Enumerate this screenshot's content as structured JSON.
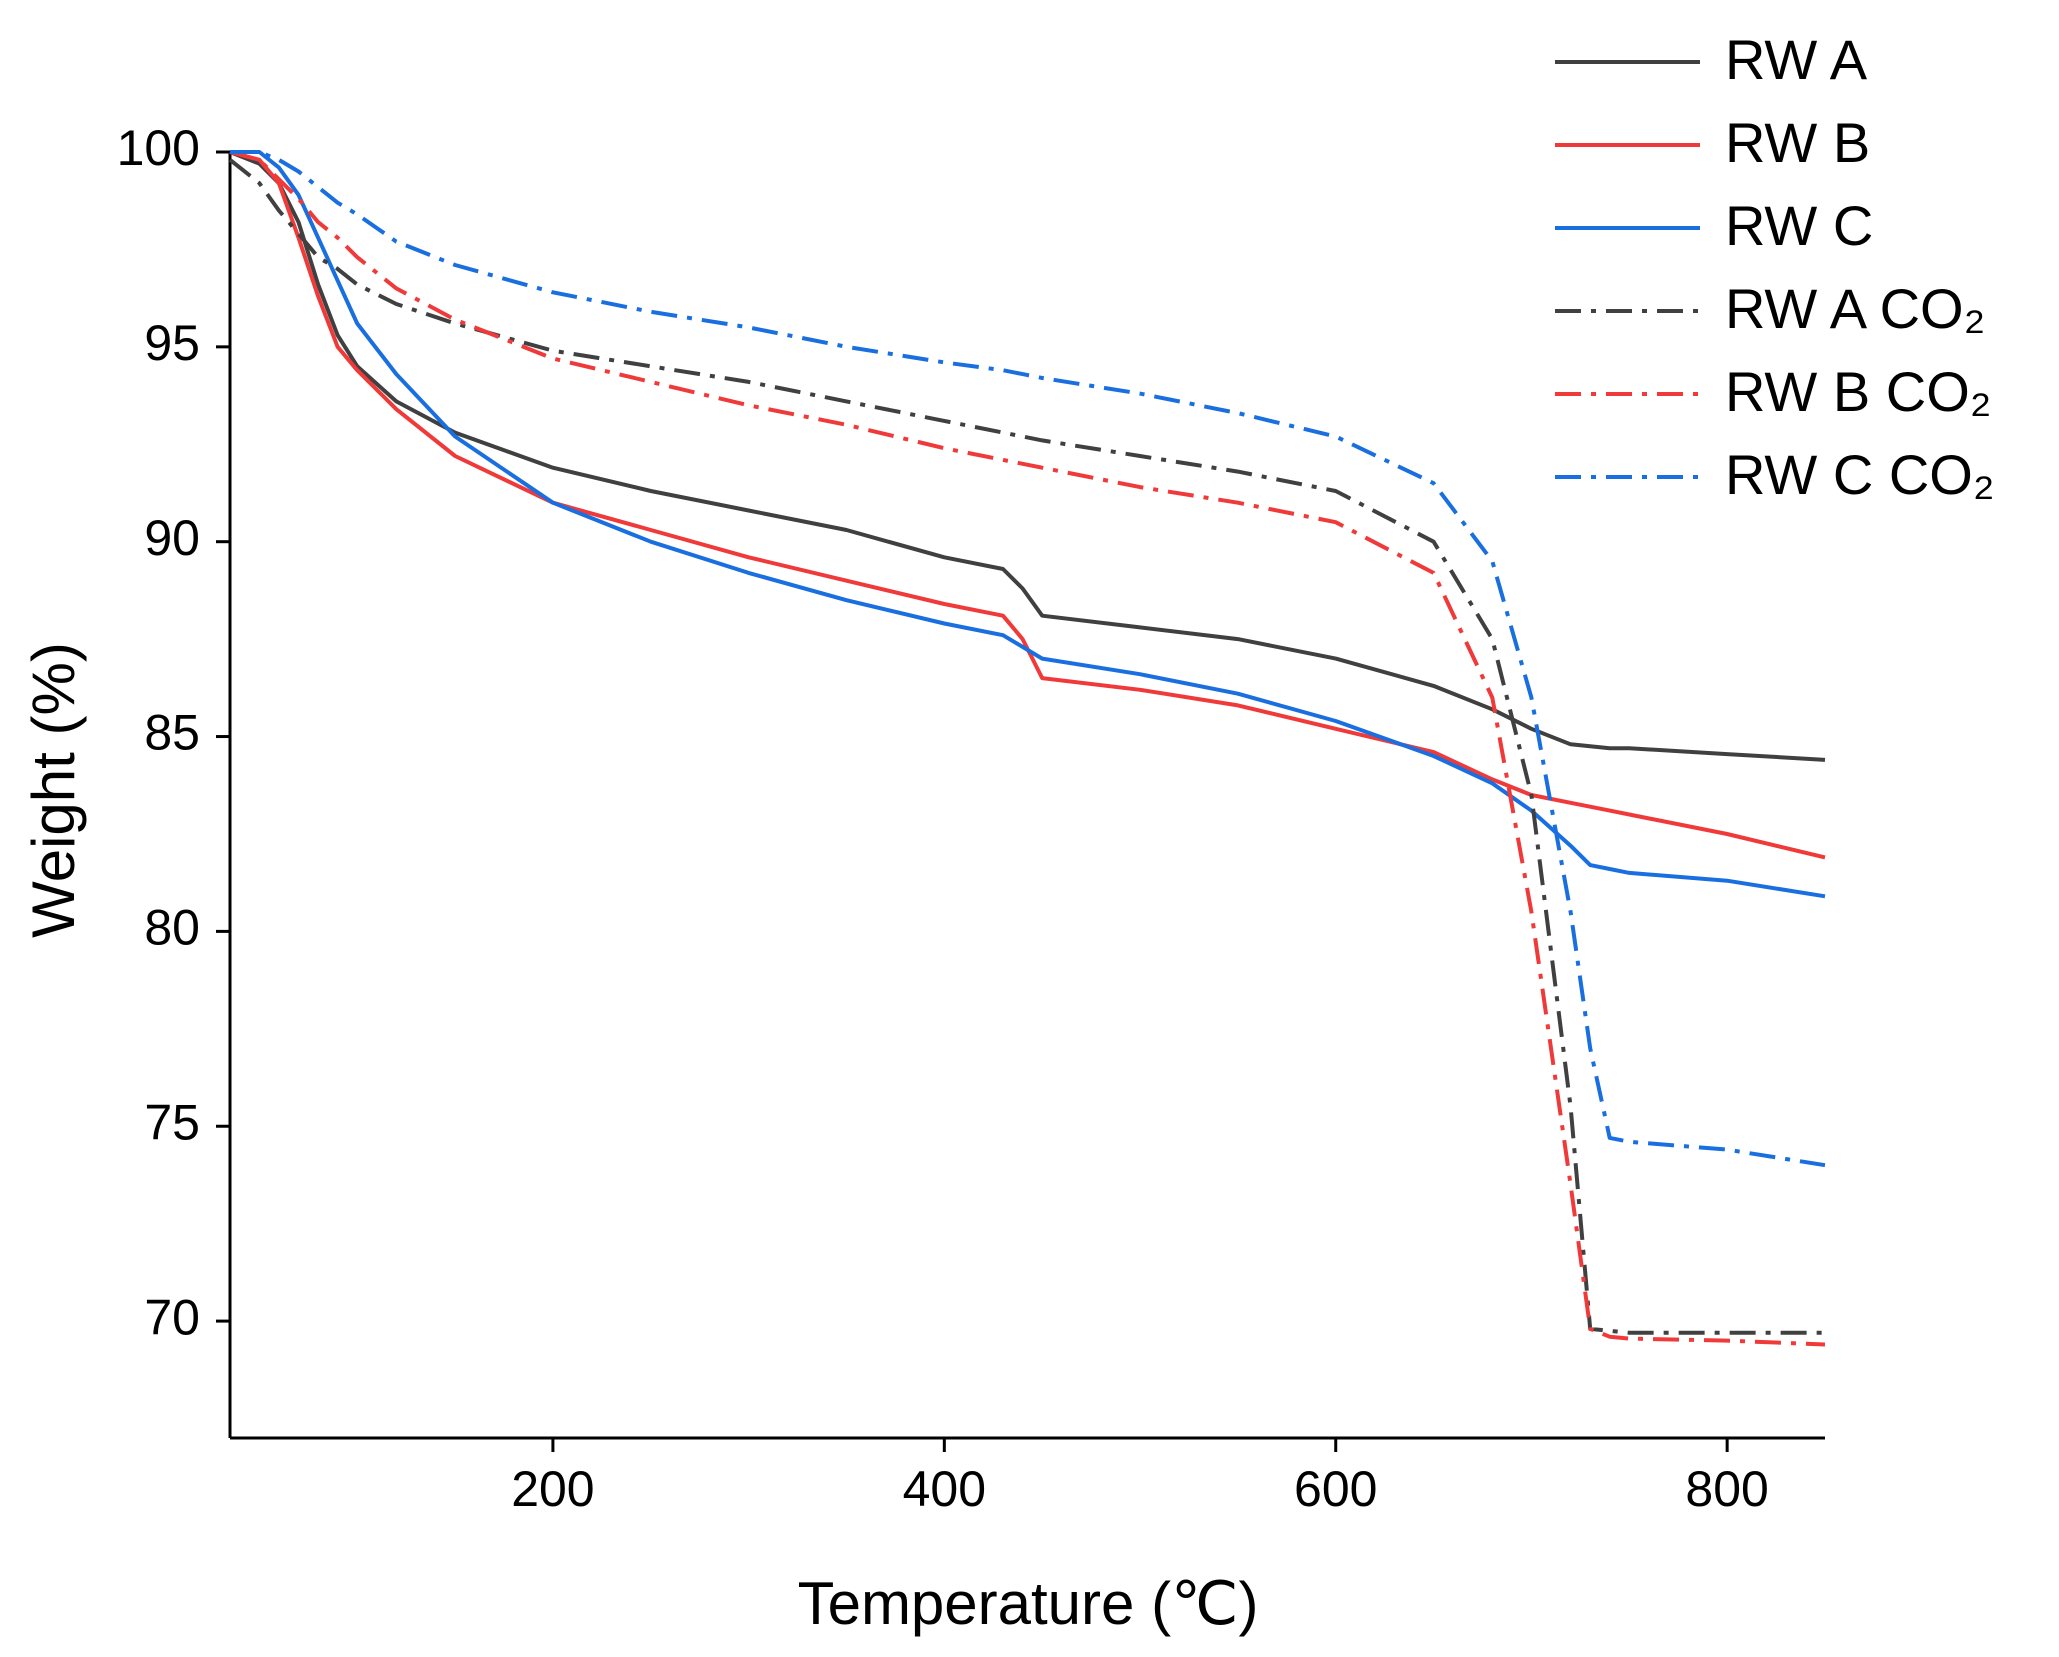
{
  "chart_data": {
    "type": "line",
    "xlabel": "Temperature (℃)",
    "ylabel": "Weight (%)",
    "xlim": [
      35,
      850
    ],
    "ylim": [
      67,
      100
    ],
    "xticks": [
      200,
      400,
      600,
      800
    ],
    "yticks": [
      70,
      75,
      80,
      85,
      90,
      95,
      100
    ],
    "legend": "upper right",
    "x": [
      35,
      50,
      60,
      70,
      80,
      90,
      100,
      120,
      150,
      200,
      250,
      300,
      350,
      400,
      430,
      440,
      450,
      500,
      550,
      600,
      650,
      680,
      700,
      720,
      730,
      740,
      750,
      800,
      850
    ],
    "series": [
      {
        "name": "RW A",
        "color": "#404040",
        "style": "solid",
        "values": [
          100,
          99.7,
          99.2,
          98.2,
          96.6,
          95.3,
          94.5,
          93.6,
          92.8,
          91.9,
          91.3,
          90.8,
          90.3,
          89.6,
          89.3,
          88.8,
          88.1,
          87.8,
          87.5,
          87.0,
          86.3,
          85.7,
          85.2,
          84.8,
          84.75,
          84.7,
          84.7,
          84.55,
          84.4
        ]
      },
      {
        "name": "RW B",
        "color": "#f03a3a",
        "style": "solid",
        "values": [
          100,
          99.8,
          99.2,
          97.8,
          96.3,
          95.0,
          94.4,
          93.4,
          92.2,
          91.0,
          90.3,
          89.6,
          89.0,
          88.4,
          88.1,
          87.5,
          86.5,
          86.2,
          85.8,
          85.2,
          84.6,
          83.9,
          83.5,
          83.3,
          83.2,
          83.1,
          83.0,
          82.5,
          81.9
        ]
      },
      {
        "name": "RW C",
        "color": "#1a6fe0",
        "style": "solid",
        "values": [
          100,
          100,
          99.6,
          98.9,
          97.8,
          96.7,
          95.6,
          94.3,
          92.7,
          91.0,
          90.0,
          89.2,
          88.5,
          87.9,
          87.6,
          87.3,
          87.0,
          86.6,
          86.1,
          85.4,
          84.5,
          83.8,
          83.1,
          82.2,
          81.7,
          81.6,
          81.5,
          81.3,
          80.9
        ]
      },
      {
        "name": "RW A CO₂",
        "color": "#404040",
        "style": "dashdot",
        "values": [
          99.8,
          99.2,
          98.5,
          97.9,
          97.3,
          97.0,
          96.6,
          96.1,
          95.6,
          94.9,
          94.5,
          94.1,
          93.6,
          93.1,
          92.8,
          92.7,
          92.6,
          92.2,
          91.8,
          91.3,
          90.0,
          87.5,
          83.5,
          75.5,
          69.8,
          69.75,
          69.7,
          69.7,
          69.7
        ]
      },
      {
        "name": "RW B CO₂",
        "color": "#f03a3a",
        "style": "dashdot",
        "values": [
          100,
          99.8,
          99.3,
          98.8,
          98.2,
          97.8,
          97.3,
          96.5,
          95.7,
          94.7,
          94.1,
          93.5,
          93.0,
          92.4,
          92.1,
          92.0,
          91.9,
          91.4,
          91.0,
          90.5,
          89.2,
          86.0,
          80.5,
          73.5,
          69.8,
          69.6,
          69.55,
          69.5,
          69.4
        ]
      },
      {
        "name": "RW C CO₂",
        "color": "#1a6fe0",
        "style": "dashdot",
        "values": [
          100,
          100,
          99.8,
          99.5,
          99.1,
          98.7,
          98.4,
          97.7,
          97.1,
          96.4,
          95.9,
          95.5,
          95.0,
          94.6,
          94.4,
          94.3,
          94.2,
          93.8,
          93.3,
          92.7,
          91.5,
          89.5,
          86.0,
          80.5,
          77.0,
          74.7,
          74.6,
          74.4,
          74.0
        ]
      }
    ]
  }
}
